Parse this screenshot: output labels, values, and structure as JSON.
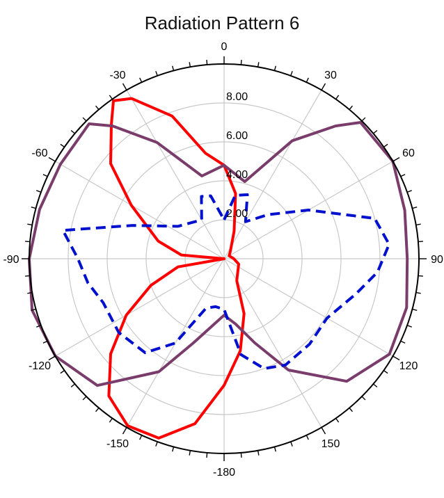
{
  "chart_data": {
    "type": "polar-line",
    "title": "Radiation Pattern 6",
    "angle_ticks": [
      0,
      30,
      60,
      90,
      120,
      150,
      -180,
      -150,
      -120,
      -90,
      -60,
      -30
    ],
    "radial_ticks": [
      "2.00",
      "4.00",
      "6.00",
      "8.00"
    ],
    "rmax": 10,
    "grid": true,
    "series": [
      {
        "color": "#ff0000",
        "style": "solid",
        "points": [
          [
            -35,
            9.9
          ],
          [
            -30,
            9.5
          ],
          [
            -20,
            7.8
          ],
          [
            -10,
            5.5
          ],
          [
            0,
            4.8
          ],
          [
            10,
            3.4
          ],
          [
            20,
            1.5
          ],
          [
            40,
            0.5
          ],
          [
            60,
            0.3
          ],
          [
            90,
            0.5
          ],
          [
            110,
            0.8
          ],
          [
            150,
            1.3
          ],
          [
            160,
            3.0
          ],
          [
            170,
            4.8
          ],
          [
            180,
            6.5
          ],
          [
            -170,
            8.6
          ],
          [
            -160,
            9.8
          ],
          [
            -150,
            9.9
          ],
          [
            -140,
            9.2
          ],
          [
            -130,
            7.6
          ],
          [
            -120,
            5.8
          ],
          [
            -110,
            4.0
          ],
          [
            -100,
            2.4
          ],
          [
            -90,
            0.0
          ],
          [
            -85,
            2.2
          ],
          [
            -75,
            3.5
          ],
          [
            -60,
            5.5
          ],
          [
            -50,
            7.6
          ],
          [
            -40,
            9.0
          ],
          [
            -35,
            9.9
          ]
        ]
      },
      {
        "color": "#7a3d6b",
        "style": "solid",
        "points": [
          [
            0,
            4.8
          ],
          [
            15,
            4.1
          ],
          [
            30,
            7.0
          ],
          [
            40,
            8.9
          ],
          [
            45,
            9.9
          ],
          [
            60,
            10.0
          ],
          [
            75,
            9.6
          ],
          [
            90,
            9.4
          ],
          [
            105,
            9.7
          ],
          [
            120,
            9.8
          ],
          [
            135,
            8.9
          ],
          [
            150,
            6.6
          ],
          [
            160,
            4.6
          ],
          [
            170,
            3.4
          ],
          [
            180,
            2.9
          ],
          [
            -170,
            3.5
          ],
          [
            -160,
            4.6
          ],
          [
            -150,
            6.7
          ],
          [
            -135,
            9.2
          ],
          [
            -120,
            10.0
          ],
          [
            -105,
            10.2
          ],
          [
            -90,
            10.0
          ],
          [
            -75,
            9.8
          ],
          [
            -60,
            9.7
          ],
          [
            -45,
            9.8
          ],
          [
            -40,
            8.9
          ],
          [
            -30,
            6.9
          ],
          [
            -15,
            4.4
          ],
          [
            0,
            4.8
          ]
        ]
      },
      {
        "color": "#0010cc",
        "style": "dashed",
        "points": [
          [
            0,
            2.0
          ],
          [
            10,
            3.3
          ],
          [
            20,
            3.5
          ],
          [
            30,
            2.2
          ],
          [
            45,
            3.2
          ],
          [
            60,
            5.0
          ],
          [
            75,
            8.0
          ],
          [
            85,
            8.5
          ],
          [
            95,
            7.9
          ],
          [
            105,
            7.0
          ],
          [
            120,
            6.1
          ],
          [
            135,
            6.2
          ],
          [
            150,
            6.3
          ],
          [
            160,
            6.0
          ],
          [
            170,
            5.0
          ],
          [
            180,
            2.6
          ],
          [
            -170,
            2.5
          ],
          [
            -160,
            2.7
          ],
          [
            -150,
            5.0
          ],
          [
            -140,
            6.3
          ],
          [
            -125,
            6.6
          ],
          [
            -110,
            6.6
          ],
          [
            -100,
            7.1
          ],
          [
            -90,
            7.5
          ],
          [
            -80,
            8.4
          ],
          [
            -70,
            5.0
          ],
          [
            -55,
            2.9
          ],
          [
            -30,
            2.3
          ],
          [
            -20,
            3.4
          ],
          [
            -12,
            3.3
          ],
          [
            0,
            2.0
          ]
        ]
      }
    ]
  }
}
